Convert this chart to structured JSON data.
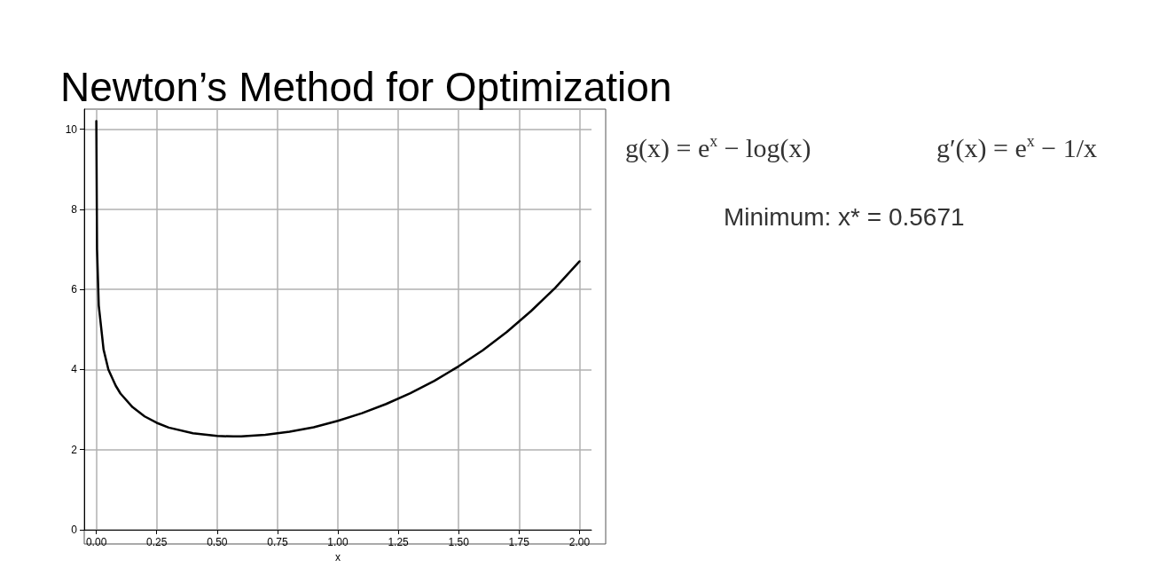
{
  "chart_data": {
    "type": "line",
    "title": "Newton’s Method for Optimization",
    "xlabel": "x",
    "x": [
      0,
      0.003,
      0.01,
      0.03,
      0.05,
      0.08,
      0.1,
      0.15,
      0.2,
      0.25,
      0.3,
      0.4,
      0.5,
      0.567,
      0.6,
      0.7,
      0.8,
      0.9,
      1.0,
      1.1,
      1.2,
      1.3,
      1.4,
      1.5,
      1.6,
      1.7,
      1.8,
      1.9,
      2.0
    ],
    "series": [
      {
        "color": "#000000",
        "values": [
          10.2,
          7,
          5.6,
          4.5,
          4.0,
          3.6,
          3.4,
          3.06,
          2.83,
          2.67,
          2.55,
          2.41,
          2.34,
          2.33,
          2.33,
          2.37,
          2.45,
          2.56,
          2.72,
          2.91,
          3.14,
          3.41,
          3.72,
          4.08,
          4.48,
          4.94,
          5.46,
          6.04,
          6.7
        ]
      }
    ],
    "xlim": [
      -0.05,
      2.05
    ],
    "ylim": [
      0,
      10.5
    ],
    "xticks": [
      {
        "value": 0,
        "label": "0.00"
      },
      {
        "value": 0.25,
        "label": "0.25"
      },
      {
        "value": 0.5,
        "label": "0.50"
      },
      {
        "value": 0.75,
        "label": "0.75"
      },
      {
        "value": 1,
        "label": "1.00"
      },
      {
        "value": 1.25,
        "label": "1.25"
      },
      {
        "value": 1.5,
        "label": "1.50"
      },
      {
        "value": 1.75,
        "label": "1.75"
      },
      {
        "value": 2,
        "label": "2.00"
      }
    ],
    "yticks": [
      0,
      2,
      4,
      6,
      8,
      10
    ],
    "grid": true,
    "marker": "none",
    "line_style": "solid",
    "annotations": [
      "g(x) = e$^{x}$ − log(x)",
      "g′(x) = e$^{x}$ − 1/x",
      "Minimum: x* = 0.5671"
    ]
  }
}
